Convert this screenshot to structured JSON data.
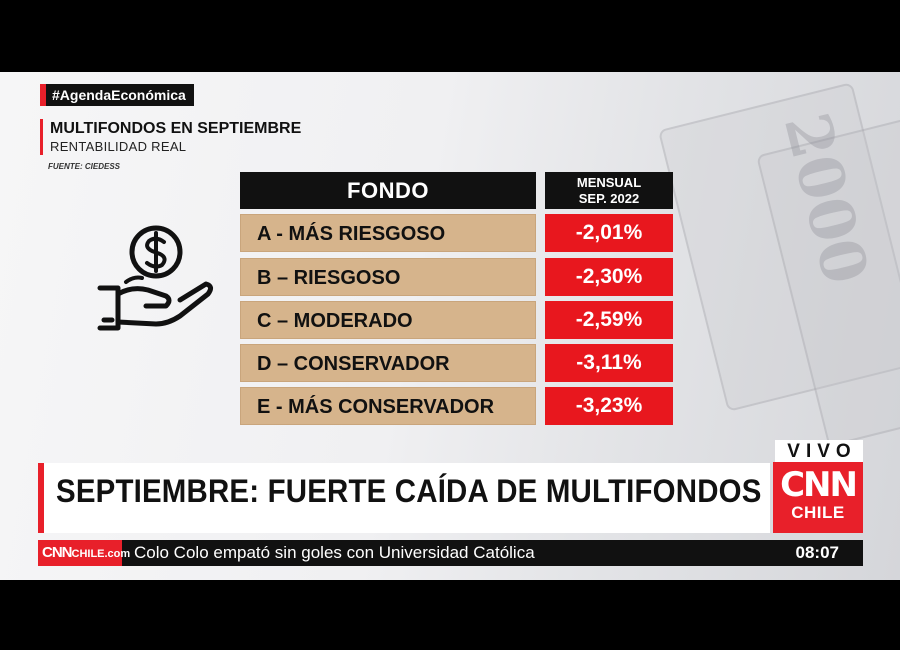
{
  "hashtag": "#AgendaEconómica",
  "title": "MULTIFONDOS EN SEPTIEMBRE",
  "subtitle": "RENTABILIDAD REAL",
  "source": "FUENTE: CIEDESS",
  "table": {
    "header_fondo": "FONDO",
    "header_mensual_line1": "MENSUAL",
    "header_mensual_line2": "SEP. 2022",
    "rows": [
      {
        "name": "A - MÁS RIESGOSO",
        "value": "-2,01%"
      },
      {
        "name": "B – RIESGOSO",
        "value": "-2,30%"
      },
      {
        "name": "C – MODERADO",
        "value": "-2,59%"
      },
      {
        "name": "D – CONSERVADOR",
        "value": "-3,11%"
      },
      {
        "name": "E - MÁS CONSERVADOR",
        "value": "-3,23%"
      }
    ]
  },
  "icon": "hand-holding-dollar-coin-icon",
  "headline": "SEPTIEMBRE: FUERTE CAÍDA DE MULTIFONDOS",
  "live_label": "VIVO",
  "logo": {
    "brand": "CNN",
    "region": "CHILE"
  },
  "ticker": {
    "logo_brand": "CNN",
    "logo_suffix": "CHILE.com",
    "text": "Colo Colo empató sin goles con Universidad Católica",
    "time": "08:07"
  },
  "colors": {
    "accent": "#e8202a",
    "row_bg": "#d6b48c",
    "value_bg": "#e8171e",
    "dark": "#111111"
  }
}
